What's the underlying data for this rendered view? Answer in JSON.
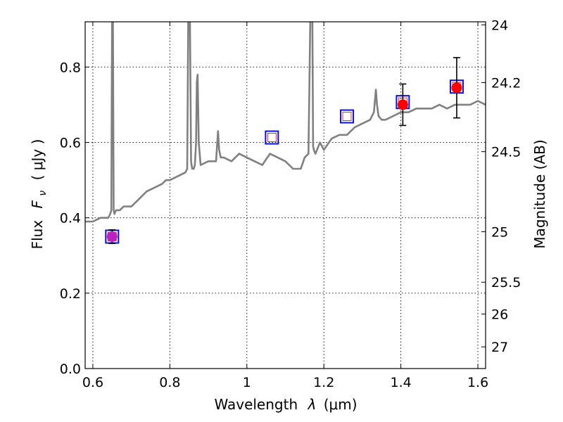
{
  "chart_data": {
    "type": "line",
    "xlabel": "Wavelength",
    "xlabel_symbol": "λ",
    "xlabel_unit": "(μm)",
    "ylabel_prefix": "Flux",
    "ylabel_symbol": "F",
    "ylabel_subscript": "ν",
    "ylabel_unit": "( μJy )",
    "ylabel_right": "Magnitude (AB)",
    "xlim": [
      0.58,
      1.62
    ],
    "ylim": [
      0.0,
      0.92
    ],
    "x_ticks": [
      0.6,
      0.8,
      1.0,
      1.2,
      1.4,
      1.6
    ],
    "x_tick_labels": [
      "0.6",
      "0.8",
      "1",
      "1.2",
      "1.4",
      "1.6"
    ],
    "y_ticks": [
      0.0,
      0.2,
      0.4,
      0.6,
      0.8
    ],
    "y_tick_labels": [
      "0.0",
      "0.2",
      "0.4",
      "0.6",
      "0.8"
    ],
    "right_ticks": [
      {
        "label": "24",
        "mag": 24.0
      },
      {
        "label": "24.2",
        "mag": 24.2
      },
      {
        "label": "24.5",
        "mag": 24.5
      },
      {
        "label": "25",
        "mag": 25.0
      },
      {
        "label": "25.5",
        "mag": 25.5
      },
      {
        "label": "26",
        "mag": 26.0
      },
      {
        "label": "27",
        "mag": 27.0
      }
    ],
    "grid": true,
    "colors": {
      "spectrum": "#808080",
      "model_marker": "#1010dd",
      "model_inner": "#e03030",
      "observed": "#ff0000",
      "observed_alt": "#bb22bb",
      "errorbar": "#000000"
    },
    "series": [
      {
        "kind": "spectrum",
        "x": [
          0.58,
          0.6,
          0.62,
          0.64,
          0.645,
          0.648,
          0.65,
          0.652,
          0.654,
          0.656,
          0.66,
          0.67,
          0.68,
          0.7,
          0.72,
          0.74,
          0.76,
          0.78,
          0.79,
          0.8,
          0.82,
          0.84,
          0.845,
          0.848,
          0.85,
          0.852,
          0.855,
          0.858,
          0.862,
          0.865,
          0.868,
          0.87,
          0.872,
          0.875,
          0.88,
          0.9,
          0.92,
          0.925,
          0.928,
          0.932,
          0.94,
          0.96,
          0.98,
          1.0,
          1.02,
          1.04,
          1.06,
          1.08,
          1.1,
          1.12,
          1.14,
          1.15,
          1.16,
          1.165,
          1.168,
          1.17,
          1.172,
          1.174,
          1.178,
          1.182,
          1.19,
          1.2,
          1.22,
          1.24,
          1.26,
          1.28,
          1.3,
          1.32,
          1.33,
          1.335,
          1.338,
          1.342,
          1.35,
          1.36,
          1.38,
          1.4,
          1.42,
          1.44,
          1.46,
          1.48,
          1.5,
          1.52,
          1.54,
          1.56,
          1.58,
          1.6,
          1.62
        ],
        "y": [
          0.39,
          0.39,
          0.4,
          0.4,
          0.41,
          0.42,
          0.95,
          0.95,
          0.42,
          0.41,
          0.42,
          0.42,
          0.43,
          0.43,
          0.45,
          0.47,
          0.48,
          0.49,
          0.5,
          0.5,
          0.51,
          0.52,
          0.53,
          0.95,
          0.95,
          0.95,
          0.55,
          0.53,
          0.53,
          0.54,
          0.6,
          0.76,
          0.78,
          0.6,
          0.54,
          0.55,
          0.55,
          0.63,
          0.58,
          0.56,
          0.56,
          0.55,
          0.57,
          0.56,
          0.55,
          0.54,
          0.57,
          0.56,
          0.55,
          0.53,
          0.53,
          0.56,
          0.57,
          0.95,
          0.95,
          0.95,
          0.59,
          0.58,
          0.57,
          0.58,
          0.6,
          0.58,
          0.61,
          0.62,
          0.62,
          0.64,
          0.65,
          0.66,
          0.68,
          0.74,
          0.7,
          0.67,
          0.66,
          0.66,
          0.67,
          0.68,
          0.68,
          0.69,
          0.69,
          0.69,
          0.7,
          0.69,
          0.7,
          0.7,
          0.7,
          0.71,
          0.7
        ]
      },
      {
        "kind": "model_photometry",
        "x": [
          0.65,
          1.065,
          1.26,
          1.405,
          1.545
        ],
        "y": [
          0.35,
          0.613,
          0.669,
          0.707,
          0.748
        ]
      },
      {
        "kind": "observed_photometry",
        "x": [
          0.65,
          1.405,
          1.545
        ],
        "y": [
          0.35,
          0.7,
          0.745
        ],
        "yerr": [
          0.018,
          0.055,
          0.08
        ]
      }
    ]
  }
}
